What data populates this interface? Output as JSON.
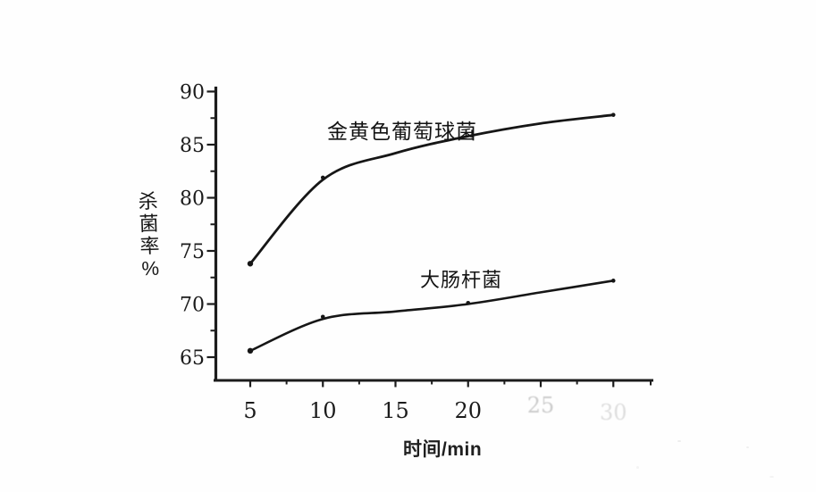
{
  "page": {
    "background": "#fefefe",
    "ink_color": "#1c1c1c",
    "description": "scanned textbook line chart"
  },
  "chart_data": {
    "type": "line",
    "title": "",
    "xlabel": "时间/min",
    "ylabel": "杀菌率%",
    "xlim": [
      2.5,
      32.5
    ],
    "ylim": [
      62.5,
      91.5
    ],
    "x_ticks": [
      5,
      10,
      15,
      20,
      25,
      30
    ],
    "x_tick_labels": [
      "5",
      "10",
      "15",
      "20"
    ],
    "x_tick_labels_faded": [
      "25",
      "30"
    ],
    "y_ticks": [
      65,
      70,
      75,
      80,
      85,
      90
    ],
    "minor_tick_step": 2.5,
    "grid": false,
    "legend": "inline-labels",
    "series": [
      {
        "name": "金黄色葡萄球菌",
        "x": [
          5,
          10,
          15,
          20,
          25,
          30
        ],
        "values": [
          73.8,
          81.7,
          84.2,
          85.8,
          87.0,
          87.8
        ],
        "markers": [
          {
            "t": 5,
            "v": 73.8,
            "shape": "dot"
          },
          {
            "t": 10,
            "v": 81.9,
            "shape": "dot"
          },
          {
            "t": 20.3,
            "v": 86.4,
            "shape": "vdash"
          },
          {
            "t": 30,
            "v": 87.8,
            "shape": "dot"
          }
        ],
        "color": "#161616"
      },
      {
        "name": "大肠杆菌",
        "x": [
          5,
          10,
          15,
          20,
          25,
          30
        ],
        "values": [
          65.6,
          68.6,
          69.3,
          70.0,
          71.1,
          72.2
        ],
        "markers": [
          {
            "t": 5,
            "v": 65.6,
            "shape": "dot"
          },
          {
            "t": 10,
            "v": 68.8,
            "shape": "dot"
          },
          {
            "t": 20,
            "v": 70.1,
            "shape": "dot"
          },
          {
            "t": 30,
            "v": 72.2,
            "shape": "dot"
          }
        ],
        "color": "#161616"
      }
    ]
  }
}
